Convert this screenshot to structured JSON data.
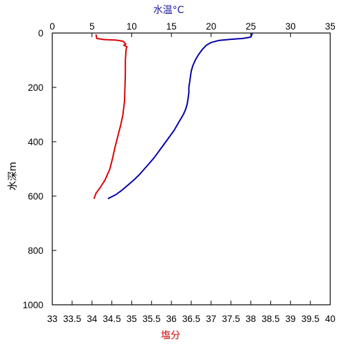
{
  "chart_data": {
    "type": "line",
    "title": "",
    "top_axis": {
      "label": "水温°C",
      "label_color": "#1a1aa6",
      "range": [
        0,
        35
      ],
      "ticks": [
        0,
        5,
        10,
        15,
        20,
        25,
        30,
        35
      ],
      "tick_labels": [
        "0",
        "5",
        "10",
        "15",
        "20",
        "25",
        "30",
        "35"
      ]
    },
    "bottom_axis": {
      "label": "塩分",
      "label_color": "#cc0000",
      "range": [
        33,
        40
      ],
      "ticks": [
        33,
        33.5,
        34,
        34.5,
        35,
        35.5,
        36,
        36.5,
        37,
        37.5,
        38,
        38.5,
        39,
        39.5,
        40
      ],
      "tick_labels": [
        "33",
        "33.5",
        "34",
        "34.5",
        "35",
        "35.5",
        "36",
        "36.5",
        "37",
        "37.5",
        "38",
        "38.5",
        "39",
        "39.5",
        "40"
      ]
    },
    "y_axis": {
      "label": "水深m",
      "range": [
        0,
        1000
      ],
      "inverted": true,
      "ticks": [
        0,
        200,
        400,
        600,
        800,
        1000
      ],
      "tick_labels": [
        "0",
        "200",
        "400",
        "600",
        "800",
        "1000"
      ]
    },
    "grid": false,
    "series": [
      {
        "axis": "top",
        "color": "#0000aa",
        "points": [
          [
            25.2,
            0
          ],
          [
            25.1,
            8
          ],
          [
            25.0,
            15
          ],
          [
            24.0,
            20
          ],
          [
            22.5,
            23
          ],
          [
            21.0,
            27
          ],
          [
            20.0,
            35
          ],
          [
            19.4,
            45
          ],
          [
            18.9,
            60
          ],
          [
            18.4,
            80
          ],
          [
            18.0,
            100
          ],
          [
            17.7,
            120
          ],
          [
            17.5,
            140
          ],
          [
            17.4,
            160
          ],
          [
            17.3,
            180
          ],
          [
            17.2,
            200
          ],
          [
            17.2,
            220
          ],
          [
            17.1,
            240
          ],
          [
            17.0,
            260
          ],
          [
            16.8,
            280
          ],
          [
            16.5,
            300
          ],
          [
            16.1,
            320
          ],
          [
            15.7,
            340
          ],
          [
            15.3,
            360
          ],
          [
            14.8,
            380
          ],
          [
            14.3,
            400
          ],
          [
            13.8,
            420
          ],
          [
            13.3,
            440
          ],
          [
            12.8,
            460
          ],
          [
            12.2,
            480
          ],
          [
            11.6,
            500
          ],
          [
            11.0,
            520
          ],
          [
            10.3,
            540
          ],
          [
            9.5,
            560
          ],
          [
            8.7,
            580
          ],
          [
            8.0,
            595
          ],
          [
            7.3,
            605
          ],
          [
            7.0,
            610
          ]
        ]
      },
      {
        "axis": "bottom",
        "color": "#dd0000",
        "points": [
          [
            34.1,
            5
          ],
          [
            34.12,
            20
          ],
          [
            34.3,
            24
          ],
          [
            34.6,
            26
          ],
          [
            34.78,
            30
          ],
          [
            34.85,
            40
          ],
          [
            34.8,
            45
          ],
          [
            34.88,
            50
          ],
          [
            34.86,
            60
          ],
          [
            34.84,
            100
          ],
          [
            34.84,
            150
          ],
          [
            34.83,
            200
          ],
          [
            34.82,
            250
          ],
          [
            34.78,
            300
          ],
          [
            34.72,
            340
          ],
          [
            34.65,
            380
          ],
          [
            34.58,
            420
          ],
          [
            34.52,
            460
          ],
          [
            34.45,
            500
          ],
          [
            34.33,
            540
          ],
          [
            34.2,
            570
          ],
          [
            34.1,
            590
          ],
          [
            34.05,
            610
          ]
        ]
      }
    ]
  }
}
